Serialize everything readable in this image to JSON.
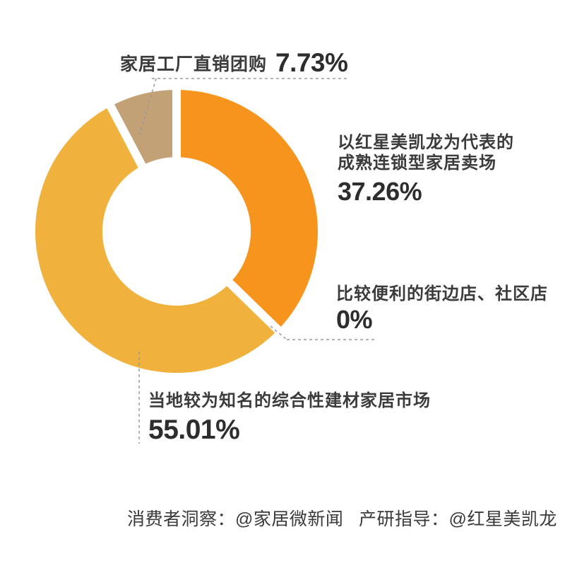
{
  "chart_data": {
    "type": "pie",
    "subtype": "donut",
    "title": "",
    "unit": "%",
    "direction": "clockwise",
    "start_angle_deg": 0,
    "legend_position": "callout-labels",
    "segments": [
      {
        "name": "以红星美凯龙为代表的成熟连锁型家居卖场",
        "value": 37.26,
        "display": "37.26%",
        "color": "#F7941E"
      },
      {
        "name": "比较便利的街边店、社区店",
        "value": 0,
        "display": "0%",
        "color": "#F0B23C"
      },
      {
        "name": "当地较为知名的综合性建材家居市场",
        "value": 55.01,
        "display": "55.01%",
        "color": "#F0B23C"
      },
      {
        "name": "家居工厂直销团购",
        "value": 7.73,
        "display": "7.73%",
        "color": "#C2A177"
      }
    ]
  },
  "callouts": {
    "factory": {
      "label": "家居工厂直销团购",
      "value": "7.73%"
    },
    "chain": {
      "label_line1": "以红星美凯龙为代表的",
      "label_line2": "成熟连锁型家居卖场",
      "value": "37.26%"
    },
    "street": {
      "label": "比较便利的街边店、社区店",
      "value": "0%"
    },
    "local": {
      "label": "当地较为知名的综合性建材家居市场",
      "value": "55.01%"
    }
  },
  "footer": {
    "insight": "消费者洞察：@家居微新闻",
    "guidance": "产研指导：@红星美凯龙"
  },
  "colors": {
    "orange": "#F7941E",
    "yellow": "#F0B23C",
    "tan": "#C2A177",
    "leader_line": "#9A9A9A",
    "label_text": "#3B3B3B",
    "number_text": "#2D2D2D",
    "background": "#FFFFFF"
  }
}
